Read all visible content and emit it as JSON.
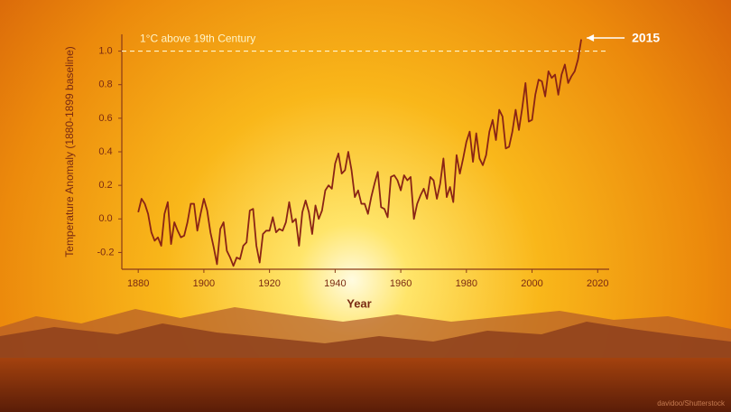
{
  "chart_data": {
    "type": "line",
    "x_label": "Year",
    "y_label": "Temperature Anomaly (1880-1899 baseline)",
    "reference_line": {
      "y": {
        "value": 1,
        "label": "1.0"
      },
      "label": "1°C above 19th Century"
    },
    "highlight_x": 2015,
    "credit": "davidoo/Shutterstock",
    "xlim": [
      1875,
      2023.5
    ],
    "ylim": [
      -0.3,
      1.1
    ],
    "xticks": [
      1880,
      1900,
      1920,
      1940,
      1960,
      1980,
      2000,
      2020
    ],
    "yticks": [
      -0.2,
      {
        "value": 0,
        "label": "0.0"
      },
      0.2,
      0.4,
      0.6,
      0.8,
      {
        "value": 1,
        "label": "1.0"
      }
    ],
    "x": [
      1880,
      1881,
      1882,
      1883,
      1884,
      1885,
      1886,
      1887,
      1888,
      1889,
      1890,
      1891,
      1892,
      1893,
      1894,
      1895,
      1896,
      1897,
      1898,
      1899,
      1900,
      1901,
      1902,
      1903,
      1904,
      1905,
      1906,
      1907,
      1908,
      1909,
      1910,
      1911,
      1912,
      1913,
      1914,
      1915,
      1916,
      1917,
      1918,
      1919,
      1920,
      1921,
      1922,
      1923,
      1924,
      1925,
      1926,
      1927,
      1928,
      1929,
      1930,
      1931,
      1932,
      1933,
      1934,
      1935,
      1936,
      1937,
      1938,
      1939,
      1940,
      1941,
      1942,
      1943,
      1944,
      1945,
      1946,
      1947,
      1948,
      1949,
      1950,
      1951,
      1952,
      1953,
      1954,
      1955,
      1956,
      1957,
      1958,
      1959,
      1960,
      1961,
      1962,
      1963,
      1964,
      1965,
      1966,
      1967,
      1968,
      1969,
      1970,
      1971,
      1972,
      1973,
      1974,
      1975,
      1976,
      1977,
      1978,
      1979,
      1980,
      1981,
      1982,
      1983,
      1984,
      1985,
      1986,
      1987,
      1988,
      1989,
      1990,
      1991,
      1992,
      1993,
      1994,
      1995,
      1996,
      1997,
      1998,
      1999,
      2000,
      2001,
      2002,
      2003,
      2004,
      2005,
      2006,
      2007,
      2008,
      2009,
      2010,
      2011,
      2012,
      2013,
      2014,
      2015
    ],
    "series": [
      {
        "color": "#8a2415",
        "values": [
          0.04,
          0.12,
          0.09,
          0.03,
          -0.08,
          -0.13,
          -0.11,
          -0.16,
          0.03,
          0.1,
          -0.15,
          -0.02,
          -0.07,
          -0.11,
          -0.1,
          -0.02,
          0.09,
          0.09,
          -0.07,
          0.03,
          0.12,
          0.05,
          -0.08,
          -0.17,
          -0.27,
          -0.06,
          -0.02,
          -0.19,
          -0.23,
          -0.28,
          -0.23,
          -0.24,
          -0.16,
          -0.14,
          0.05,
          0.06,
          -0.16,
          -0.26,
          -0.09,
          -0.07,
          -0.07,
          0.01,
          -0.08,
          -0.06,
          -0.07,
          -0.02,
          0.1,
          -0.02,
          0.0,
          -0.16,
          0.04,
          0.11,
          0.04,
          -0.09,
          0.08,
          0.0,
          0.05,
          0.17,
          0.2,
          0.18,
          0.33,
          0.39,
          0.27,
          0.29,
          0.4,
          0.29,
          0.13,
          0.17,
          0.09,
          0.09,
          0.03,
          0.13,
          0.21,
          0.28,
          0.07,
          0.06,
          0.01,
          0.25,
          0.26,
          0.23,
          0.17,
          0.26,
          0.23,
          0.25,
          0.0,
          0.09,
          0.14,
          0.18,
          0.12,
          0.25,
          0.23,
          0.12,
          0.21,
          0.36,
          0.13,
          0.19,
          0.1,
          0.38,
          0.27,
          0.36,
          0.46,
          0.52,
          0.34,
          0.51,
          0.36,
          0.32,
          0.38,
          0.52,
          0.59,
          0.47,
          0.65,
          0.61,
          0.42,
          0.43,
          0.52,
          0.65,
          0.53,
          0.66,
          0.81,
          0.58,
          0.59,
          0.74,
          0.83,
          0.82,
          0.73,
          0.88,
          0.84,
          0.86,
          0.74,
          0.86,
          0.92,
          0.81,
          0.85,
          0.88,
          0.95,
          1.07
        ]
      }
    ]
  }
}
